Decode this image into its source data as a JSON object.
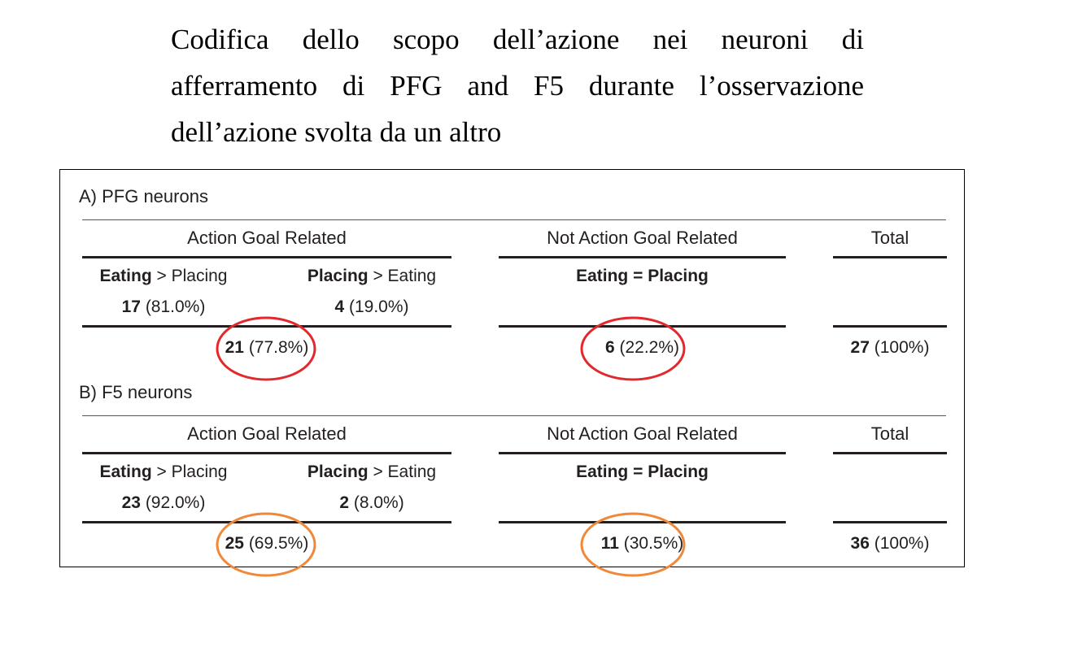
{
  "heading": {
    "line1": "Codifica dello scopo dell’azione nei neuroni di",
    "line2": "afferramento di PFG and F5 durante l’osservazione",
    "line3": "dell’azione svolta da un altro"
  },
  "sections": [
    {
      "title": "A) PFG neurons",
      "col_action": "Action Goal Related",
      "col_not": "Not Action Goal Related",
      "col_total": "Total",
      "eating_bold": "Eating",
      "eating_rest": " > Placing",
      "placing_bold": "Placing",
      "placing_rest": " > Eating",
      "equal_label": "Eating = Placing",
      "eating_count": "17",
      "eating_pct": " (81.0%)",
      "placing_count": "4",
      "placing_pct": " (19.0%)",
      "agr_count": "21",
      "agr_pct": " (77.8%)",
      "nagr_count": "6",
      "nagr_pct": " (22.2%)",
      "total_count": "27",
      "total_pct": " (100%)",
      "circle_color": "#e3282d"
    },
    {
      "title": "B) F5 neurons",
      "col_action": "Action Goal Related",
      "col_not": "Not Action Goal Related",
      "col_total": "Total",
      "eating_bold": "Eating",
      "eating_rest": " > Placing",
      "placing_bold": "Placing",
      "placing_rest": " > Eating",
      "equal_label": "Eating = Placing",
      "eating_count": "23",
      "eating_pct": " (92.0%)",
      "placing_count": "2",
      "placing_pct": " (8.0%)",
      "agr_count": "25",
      "agr_pct": " (69.5%)",
      "nagr_count": "11",
      "nagr_pct": " (30.5%)",
      "total_count": "36",
      "total_pct": " (100%)",
      "circle_color": "#f0883a"
    }
  ]
}
